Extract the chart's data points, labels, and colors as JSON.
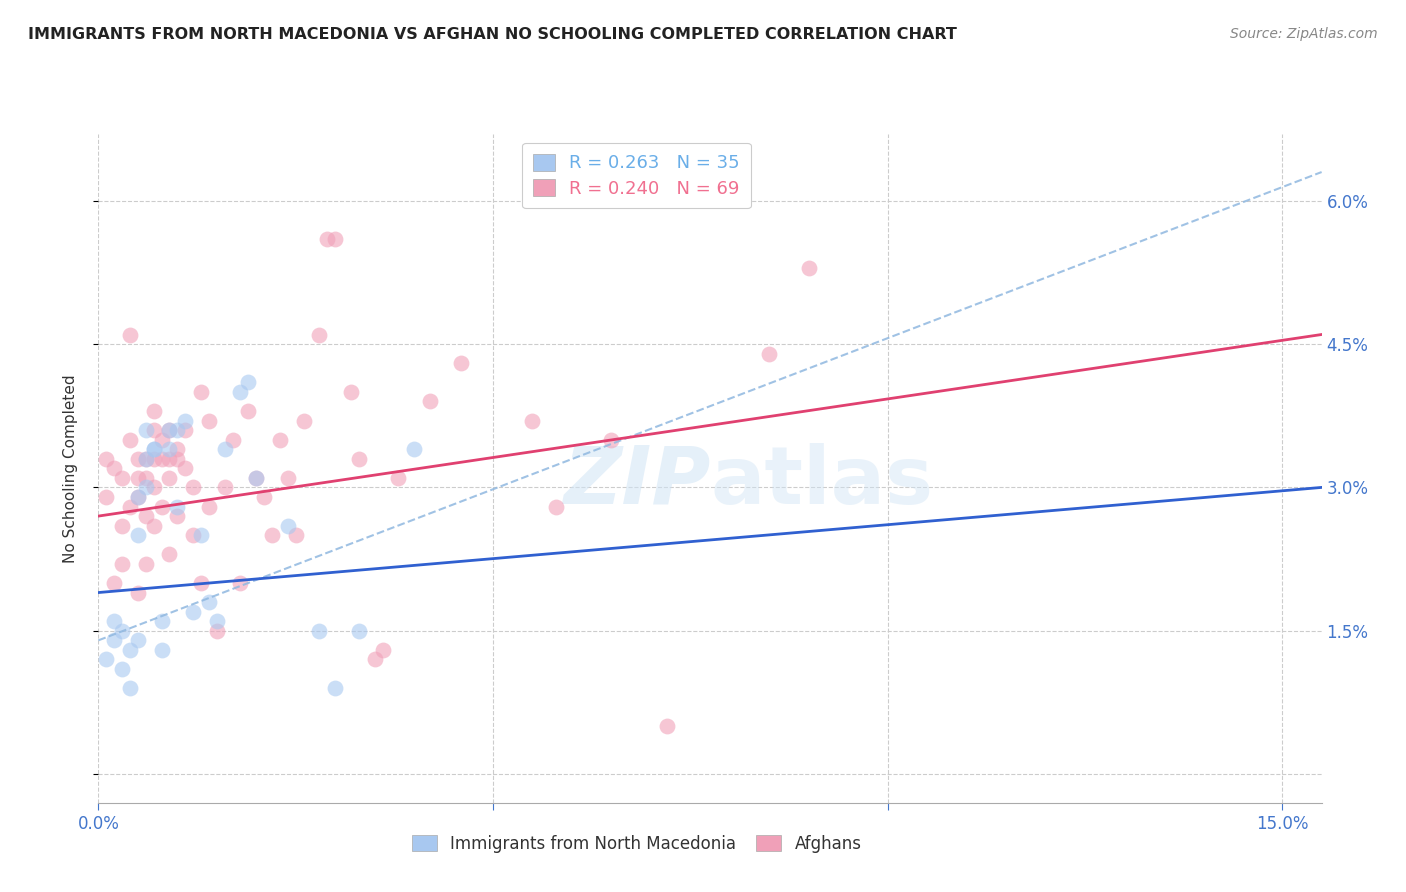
{
  "title": "IMMIGRANTS FROM NORTH MACEDONIA VS AFGHAN NO SCHOOLING COMPLETED CORRELATION CHART",
  "source": "Source: ZipAtlas.com",
  "ylabel": "No Schooling Completed",
  "watermark": "ZIPatlas",
  "xlim": [
    0.0,
    0.155
  ],
  "ylim": [
    -0.003,
    0.067
  ],
  "y_ticks": [
    0.0,
    0.015,
    0.03,
    0.045,
    0.06
  ],
  "y_tick_labels": [
    "",
    "1.5%",
    "3.0%",
    "4.5%",
    "6.0%"
  ],
  "legend_entries": [
    {
      "label": "R = 0.263   N = 35",
      "color": "#6aaee8"
    },
    {
      "label": "R = 0.240   N = 69",
      "color": "#f07090"
    }
  ],
  "legend_label_macedonian": "Immigrants from North Macedonia",
  "legend_label_afghan": "Afghans",
  "blue_scatter_color": "#a8c8f0",
  "pink_scatter_color": "#f0a0b8",
  "blue_line_color": "#3060d0",
  "pink_line_color": "#e04070",
  "dashed_line_color": "#90b8e0",
  "grid_color": "#cccccc",
  "tick_color": "#4477cc",
  "macedonian_x": [
    0.001,
    0.002,
    0.002,
    0.003,
    0.003,
    0.004,
    0.004,
    0.005,
    0.005,
    0.005,
    0.006,
    0.006,
    0.006,
    0.007,
    0.007,
    0.008,
    0.008,
    0.009,
    0.009,
    0.01,
    0.01,
    0.011,
    0.012,
    0.013,
    0.014,
    0.015,
    0.016,
    0.018,
    0.019,
    0.02,
    0.024,
    0.028,
    0.03,
    0.033,
    0.04
  ],
  "macedonian_y": [
    0.012,
    0.014,
    0.016,
    0.011,
    0.015,
    0.009,
    0.013,
    0.025,
    0.029,
    0.014,
    0.03,
    0.033,
    0.036,
    0.034,
    0.034,
    0.013,
    0.016,
    0.034,
    0.036,
    0.028,
    0.036,
    0.037,
    0.017,
    0.025,
    0.018,
    0.016,
    0.034,
    0.04,
    0.041,
    0.031,
    0.026,
    0.015,
    0.009,
    0.015,
    0.034
  ],
  "afghan_x": [
    0.001,
    0.001,
    0.002,
    0.002,
    0.003,
    0.003,
    0.003,
    0.004,
    0.004,
    0.004,
    0.005,
    0.005,
    0.005,
    0.005,
    0.006,
    0.006,
    0.006,
    0.006,
    0.007,
    0.007,
    0.007,
    0.007,
    0.007,
    0.008,
    0.008,
    0.008,
    0.009,
    0.009,
    0.009,
    0.009,
    0.01,
    0.01,
    0.01,
    0.011,
    0.011,
    0.012,
    0.012,
    0.013,
    0.013,
    0.014,
    0.014,
    0.015,
    0.016,
    0.017,
    0.018,
    0.019,
    0.02,
    0.021,
    0.022,
    0.023,
    0.024,
    0.025,
    0.026,
    0.028,
    0.029,
    0.03,
    0.032,
    0.033,
    0.035,
    0.036,
    0.038,
    0.042,
    0.046,
    0.055,
    0.058,
    0.065,
    0.072,
    0.085,
    0.09
  ],
  "afghan_y": [
    0.029,
    0.033,
    0.02,
    0.032,
    0.022,
    0.026,
    0.031,
    0.028,
    0.035,
    0.046,
    0.019,
    0.029,
    0.031,
    0.033,
    0.022,
    0.027,
    0.031,
    0.033,
    0.026,
    0.03,
    0.033,
    0.036,
    0.038,
    0.028,
    0.033,
    0.035,
    0.023,
    0.031,
    0.033,
    0.036,
    0.027,
    0.033,
    0.034,
    0.032,
    0.036,
    0.025,
    0.03,
    0.02,
    0.04,
    0.028,
    0.037,
    0.015,
    0.03,
    0.035,
    0.02,
    0.038,
    0.031,
    0.029,
    0.025,
    0.035,
    0.031,
    0.025,
    0.037,
    0.046,
    0.056,
    0.056,
    0.04,
    0.033,
    0.012,
    0.013,
    0.031,
    0.039,
    0.043,
    0.037,
    0.028,
    0.035,
    0.005,
    0.044,
    0.053
  ],
  "blue_trend_x0": 0.0,
  "blue_trend_x1": 0.155,
  "blue_trend_y0": 0.019,
  "blue_trend_y1": 0.03,
  "pink_trend_x0": 0.0,
  "pink_trend_x1": 0.155,
  "pink_trend_y0": 0.027,
  "pink_trend_y1": 0.046,
  "dashed_trend_x0": 0.0,
  "dashed_trend_x1": 0.155,
  "dashed_trend_y0": 0.014,
  "dashed_trend_y1": 0.063
}
